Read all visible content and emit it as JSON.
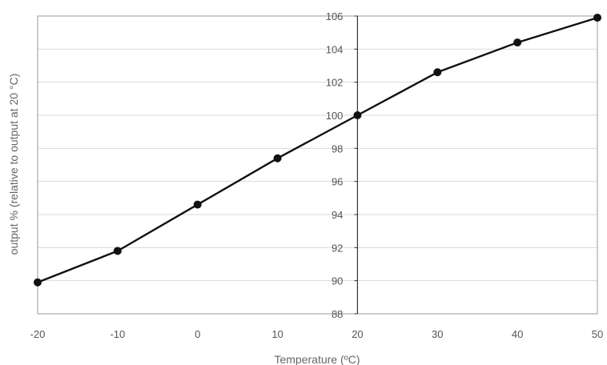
{
  "chart_data": {
    "type": "line",
    "title": "",
    "xlabel": "Temperature (ºC)",
    "ylabel": "output % (relative to output at 20 °C)",
    "x": [
      -20,
      -10,
      0,
      10,
      20,
      30,
      40,
      50
    ],
    "xlim": [
      -20,
      50
    ],
    "ylim": [
      88,
      106
    ],
    "x_ticks": [
      "-20",
      "-10",
      "0",
      "10",
      "20",
      "30",
      "40",
      "50"
    ],
    "y_ticks": [
      "88",
      "90",
      "92",
      "94",
      "96",
      "98",
      "100",
      "102",
      "104",
      "106"
    ],
    "series": [
      {
        "values": [
          89.9,
          91.8,
          94.6,
          97.4,
          100.0,
          102.6,
          104.4,
          105.9
        ]
      }
    ],
    "y_axis_at_x": 20,
    "grid": true,
    "line_color": "#111111",
    "grid_color": "#d9d9d9",
    "axis_color": "#333333"
  }
}
